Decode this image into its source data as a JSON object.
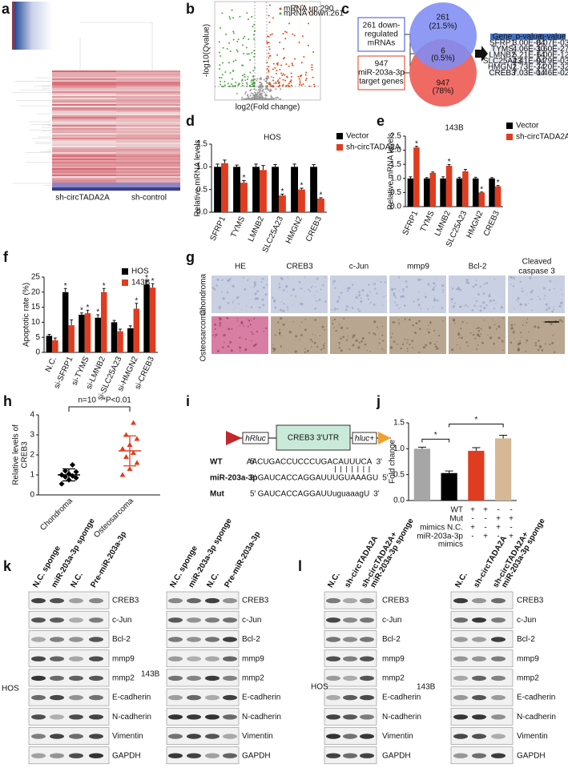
{
  "panel_letters": [
    "a",
    "b",
    "c",
    "d",
    "e",
    "f",
    "g",
    "h",
    "i",
    "j",
    "k",
    "l"
  ],
  "panel_a": {
    "column_labels": [
      "sh-circTADA2A",
      "sh-control"
    ]
  },
  "panel_b": {
    "y_label": "-log10(Qvalue)",
    "x_label": "log2(Fold change)",
    "legend": [
      "mRNA up:290",
      "mRNA down:261"
    ]
  },
  "panel_c": {
    "set_boxes": [
      [
        "261 down-",
        "regulated",
        "mRNAs"
      ],
      [
        "947",
        "miR-203a-3p",
        "target genes"
      ]
    ],
    "venn": [
      [
        "261",
        "(21.5%)"
      ],
      [
        "6",
        "(0.5%)"
      ],
      [
        "947",
        "(78%)"
      ]
    ],
    "table": {
      "header": [
        "Gene",
        "p-value",
        "q-value"
      ],
      "rows": [
        [
          "SFRP1",
          "3.00E-04",
          "8.07E-03"
        ],
        [
          "TYMS",
          "4.06E-30",
          "1.60E-27"
        ],
        [
          "LMNB2",
          "5.21E-14",
          "6.00E-12"
        ],
        [
          "SLC25A23",
          "4.41E-04",
          "9.79E-03"
        ],
        [
          "HMGN2",
          "1.73E-34",
          "7.20E-32"
        ],
        [
          "CREB3",
          "7.03E-04",
          "1.46E-02"
        ]
      ]
    }
  },
  "chart_data": [
    {
      "type": "bar",
      "title": "HOS",
      "y_label": [
        "Relative mRNA levels"
      ],
      "categories": [
        "SFRP1",
        "TYMS",
        "LMNB2",
        "SLC25A23",
        "HMGN2",
        "CREB3"
      ],
      "series": [
        {
          "name": "Vector",
          "color": "#000000",
          "values": [
            1,
            1,
            1,
            1,
            1,
            1
          ],
          "errors": [
            0.06,
            0.04,
            0.06,
            0.05,
            0.06,
            0.05
          ]
        },
        {
          "name": "sh-circTADA2A",
          "color": "#e03c1f",
          "values": [
            1.08,
            0.65,
            0.93,
            0.37,
            0.5,
            0.3
          ],
          "errors": [
            0.07,
            0.05,
            0.1,
            0.03,
            0.03,
            0.02
          ],
          "stars": [
            null,
            "*",
            null,
            "*",
            "*",
            "*"
          ]
        }
      ],
      "ylim": [
        0,
        1.5
      ],
      "yticks": [
        {
          "value": 0,
          "label": "0.0"
        },
        0.5,
        {
          "value": 1,
          "label": "1.0"
        },
        1.5
      ]
    },
    {
      "type": "bar",
      "title": "143B",
      "y_label": [
        "Relative mRNA levels"
      ],
      "categories": [
        "SFRP1",
        "TYMS",
        "LMNB2",
        "SLC25A23",
        "HMGN2",
        "CREB3"
      ],
      "series": [
        {
          "name": "Vector",
          "color": "#000000",
          "values": [
            1,
            1,
            1,
            1,
            1,
            1
          ],
          "errors": [
            0.06,
            0.03,
            0.06,
            0.04,
            0.04,
            0.03
          ]
        },
        {
          "name": "sh-circTADA2A",
          "color": "#e03c1f",
          "values": [
            2.1,
            1.2,
            1.45,
            1.25,
            0.5,
            0.72
          ],
          "errors": [
            0.04,
            0.03,
            0.04,
            0.07,
            0.02,
            0.03
          ],
          "stars": [
            "*",
            null,
            "*",
            null,
            "*",
            "*"
          ]
        }
      ],
      "ylim": [
        0,
        2.5
      ],
      "yticks": [
        {
          "value": 0,
          "label": "0.0"
        },
        0.5,
        {
          "value": 1,
          "label": "1.0"
        },
        1.5,
        {
          "value": 2,
          "label": "2.0"
        },
        2.5
      ]
    },
    {
      "type": "bar",
      "y_label": [
        "Apoptotic rate (%)"
      ],
      "categories": [
        "N.C.",
        "si-SFRP1",
        "si-TYMS",
        "si-LMNB2",
        "si-SLC25A23",
        "si-HMGN2",
        "si-CREB3"
      ],
      "series": [
        {
          "name": "HOS",
          "color": "#000000",
          "values": [
            5.5,
            20,
            12.5,
            11.5,
            10,
            8,
            22.5
          ],
          "errors": [
            0.5,
            1.2,
            0.6,
            1,
            0.6,
            0.8,
            1.3
          ],
          "stars": [
            null,
            "*",
            "*",
            "*",
            null,
            null,
            "*"
          ]
        },
        {
          "name": "143B",
          "color": "#e03c1f",
          "values": [
            4,
            9,
            13,
            20,
            7,
            14.5,
            21.5
          ],
          "errors": [
            0.8,
            1.8,
            1,
            1.2,
            0.7,
            1.8,
            1.3
          ],
          "stars": [
            null,
            null,
            "*",
            "*",
            null,
            "*",
            "*"
          ]
        }
      ],
      "ylim": [
        0,
        25
      ],
      "yticks": [
        0,
        5,
        10,
        15,
        20,
        25
      ]
    },
    {
      "type": "strip",
      "y_label": [
        "Relative levels of",
        "CREB3"
      ],
      "categories": [
        "Chondroma",
        "Osteosarcoma"
      ],
      "colors": [
        "#000000",
        "#e03c1f"
      ],
      "points": [
        [
          0.55,
          0.75,
          0.85,
          0.9,
          0.95,
          1.0,
          1.05,
          1.15,
          1.2,
          1.5
        ],
        [
          1.0,
          1.3,
          1.6,
          1.9,
          2.1,
          2.3,
          2.5,
          2.8,
          3.0,
          3.6
        ]
      ],
      "means": [
        1.0,
        2.2
      ],
      "sd": [
        0.3,
        0.75
      ],
      "annotation": [
        "n=10",
        "*P<0.01"
      ],
      "ylim": [
        0,
        4
      ],
      "yticks": [
        0,
        1,
        2,
        3,
        4
      ]
    },
    {
      "type": "bar",
      "y_label": [
        "Fold change"
      ],
      "series": [
        {
          "colors": [
            "#a6a6a6",
            "#000000",
            "#e03c1f",
            "#d6b796"
          ],
          "values": [
            1.0,
            0.53,
            0.96,
            1.2
          ],
          "errors": [
            0.03,
            0.04,
            0.06,
            0.06
          ]
        }
      ],
      "brackets": [
        {
          "between": [
            0,
            1
          ],
          "label": "*"
        },
        {
          "between": [
            1,
            3
          ],
          "label": "*"
        }
      ],
      "table": [
        {
          "label": [
            "WT"
          ],
          "marks": [
            "+",
            "+",
            "-",
            "-"
          ]
        },
        {
          "label": [
            "Mut"
          ],
          "marks": [
            "-",
            "-",
            "+",
            "+"
          ]
        },
        {
          "label": [
            "mimics N.C."
          ],
          "marks": [
            "+",
            "-",
            "+",
            "-"
          ]
        },
        {
          "label": [
            "miR-203a-3p",
            "mimics"
          ],
          "marks": [
            "-",
            "+",
            "-",
            "+"
          ]
        }
      ],
      "ylim": [
        0,
        1.5
      ],
      "yticks": [
        {
          "value": 0,
          "label": "0.0"
        },
        0.5,
        {
          "value": 1,
          "label": "1.0"
        },
        1.5
      ]
    }
  ],
  "panel_g": {
    "columns": [
      [
        "HE"
      ],
      [
        "CREB3"
      ],
      [
        "c-Jun"
      ],
      [
        "mmp9"
      ],
      [
        "Bcl-2"
      ],
      [
        "Cleaved",
        "caspase 3"
      ]
    ],
    "rows": [
      "Chondroma",
      "Osteosarcoma"
    ]
  },
  "panel_i": {
    "construct": [
      "hRluc",
      "CREB3 3'UTR",
      "hluc+"
    ],
    "sequences": [
      {
        "label": "WT",
        "left": "5'",
        "parts": [
          "AACUGACCUCCCUGA",
          "CAUUUCA"
        ],
        "colors": [
          "#222222",
          "#e03c1f"
        ],
        "right": "3'"
      },
      {
        "label": "miR-203a-3p",
        "left": "3'",
        "parts": [
          "GAUCACCAGGAUU",
          "UGUAAAG",
          "U"
        ],
        "colors": [
          "#222222",
          "#3aa0d8",
          "#222222"
        ],
        "right": "5'"
      },
      {
        "label": "Mut",
        "left": "5'",
        "parts": [
          "GAUCACCAGGAUU",
          "uguaaag",
          "U"
        ],
        "colors": [
          "#222222",
          "#2f9a3a",
          "#222222"
        ],
        "right": "3'"
      }
    ]
  },
  "panel_k": {
    "columns": [
      [
        "N.C. sponge"
      ],
      [
        "miR-203a-3p sponge"
      ],
      [
        "N.C."
      ],
      [
        "Pre-miR-203a-3p"
      ]
    ],
    "proteins": [
      "CREB3",
      "c-Jun",
      "Bcl-2",
      "mmp9",
      "mmp2",
      "E-cadherin",
      "N-cadherin",
      "Vimentin",
      "GAPDH"
    ],
    "cell_lines": [
      "HOS",
      "143B"
    ]
  },
  "panel_l": {
    "columns": [
      [
        "N.C."
      ],
      [
        "sh-circTADA2A"
      ],
      [
        "sh-circTADA2A+",
        "miR-203a-3p sponge"
      ]
    ],
    "proteins": [
      "CREB3",
      "c-Jun",
      "Bcl-2",
      "mmp9",
      "mmp2",
      "E-cadherin",
      "N-cadherin",
      "Vimentin",
      "GAPDH"
    ],
    "cell_lines": [
      "HOS",
      "143B"
    ]
  }
}
